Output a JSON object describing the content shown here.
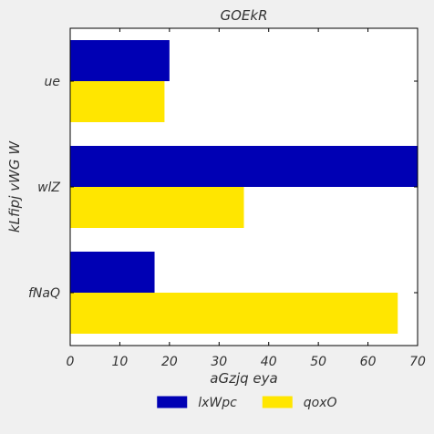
{
  "chart_data": {
    "type": "bar",
    "orientation": "horizontal",
    "title": "GOEkR",
    "xlabel": "aGzjq eya",
    "ylabel": "kLfipj vWG W",
    "categories": [
      "ue",
      "wlZ",
      "fNaQ"
    ],
    "series": [
      {
        "name": "lxWpc",
        "color": "#0000b4",
        "values": [
          20,
          70,
          17
        ]
      },
      {
        "name": "qoxO",
        "color": "#ffe600",
        "values": [
          19,
          35,
          66
        ]
      }
    ],
    "xlim": [
      0,
      70
    ],
    "xticks": [
      0,
      10,
      20,
      30,
      40,
      50,
      60,
      70
    ],
    "grid": false,
    "legend_position": "bottom-center"
  }
}
